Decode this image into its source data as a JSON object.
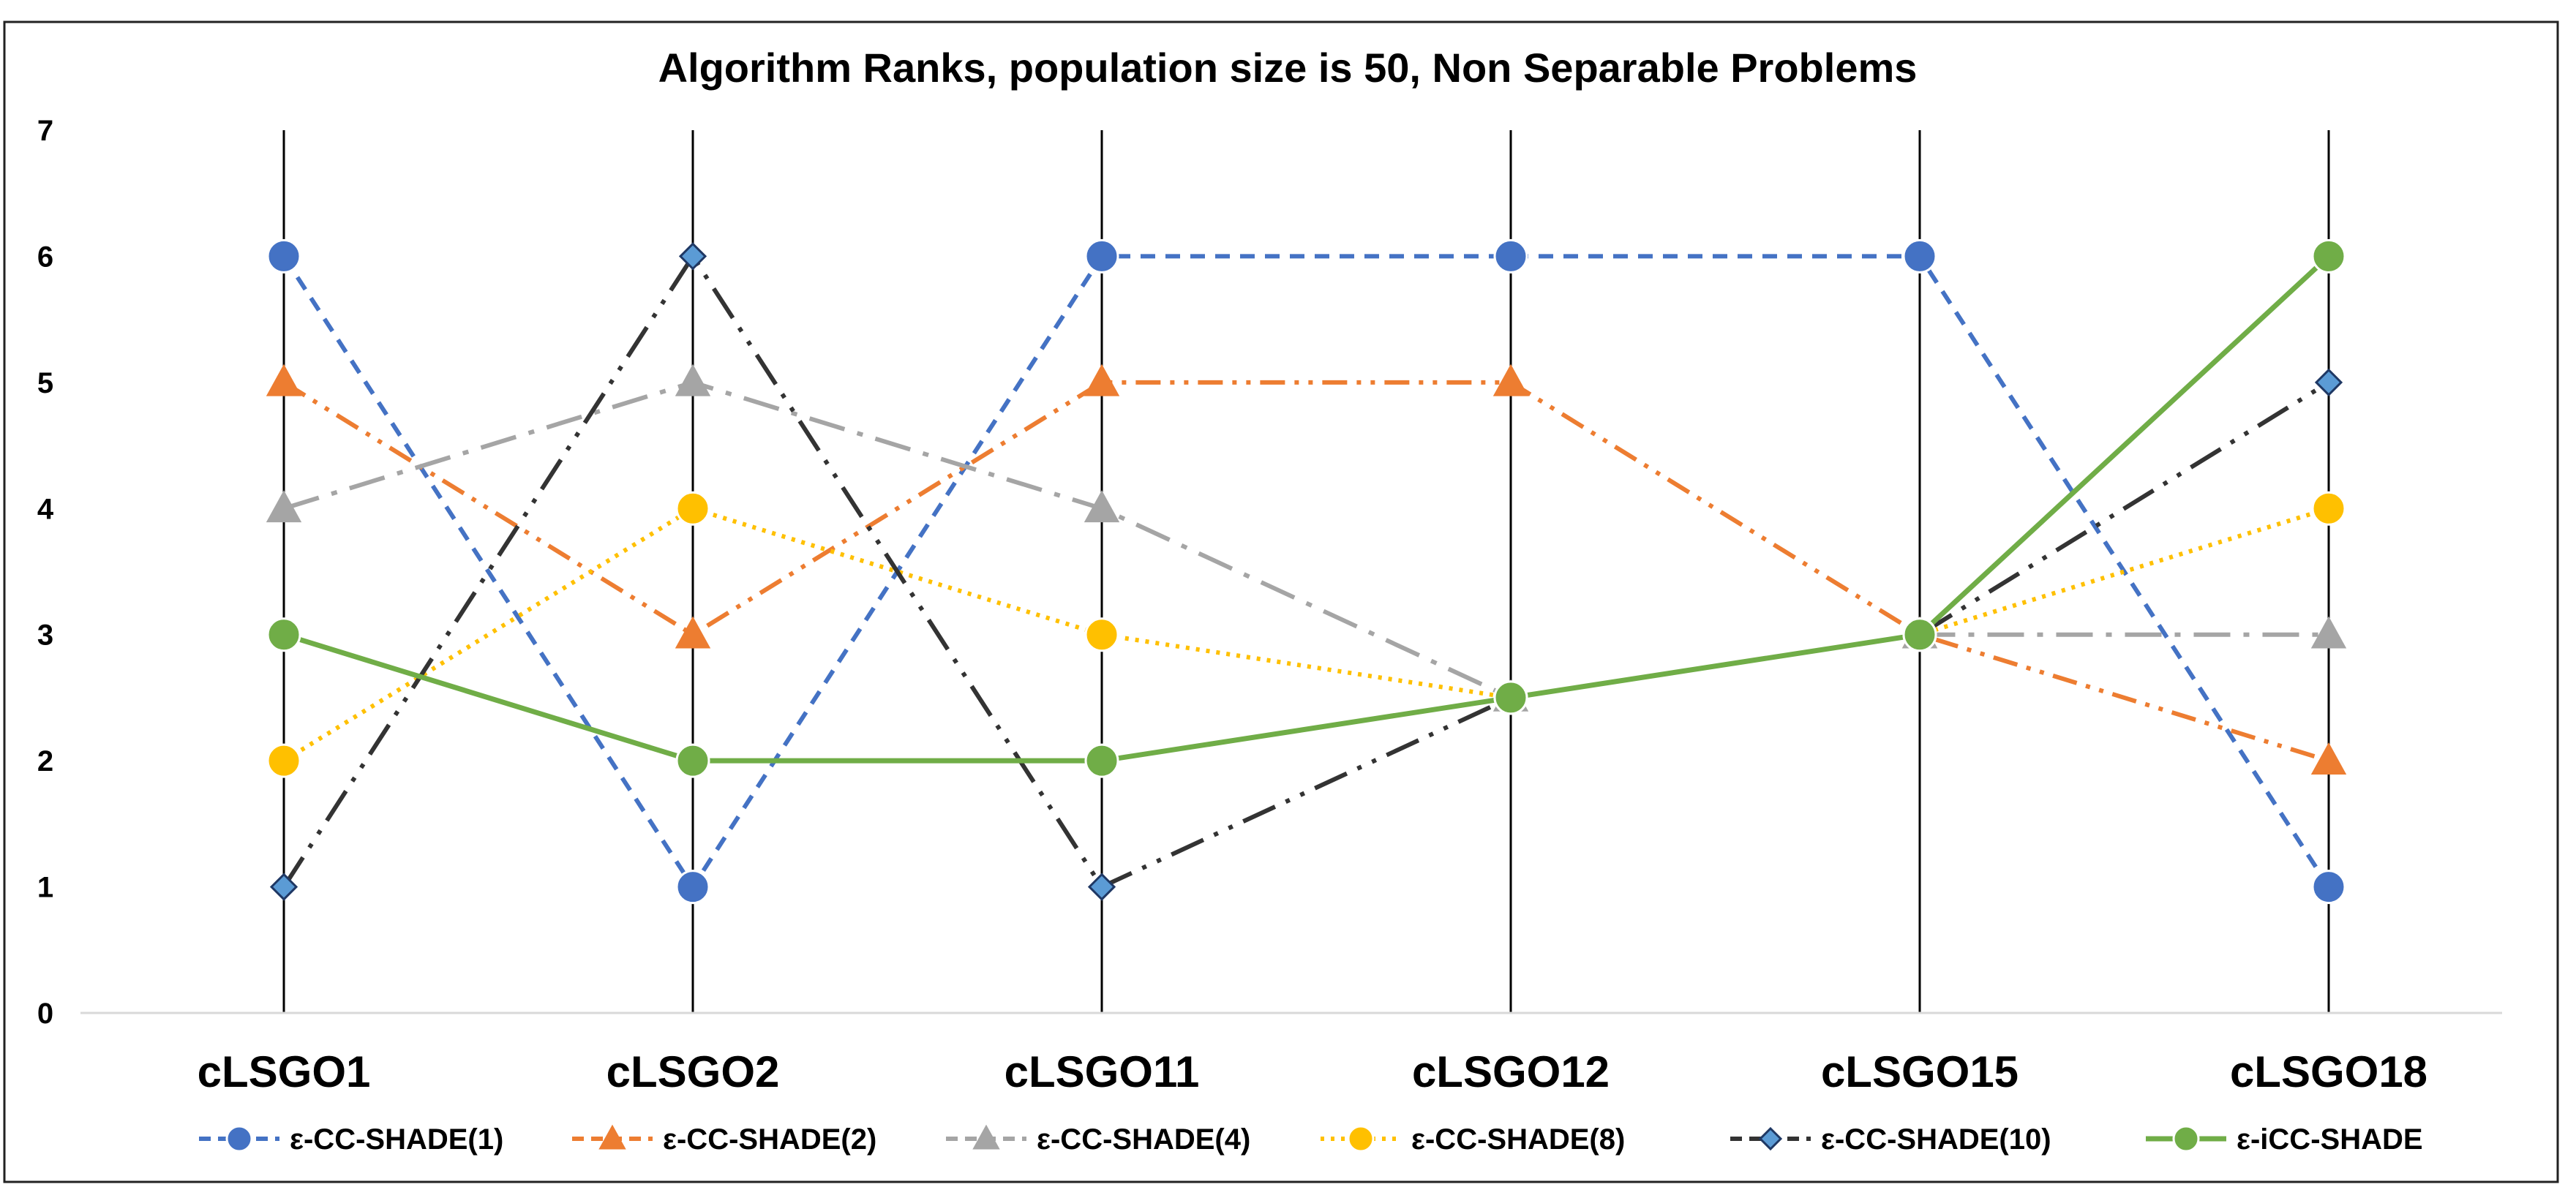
{
  "chart_data": {
    "type": "line",
    "title": "Algorithm Ranks, population size is 50, Non Separable Problems",
    "xlabel": "",
    "ylabel": "",
    "ylim": [
      0,
      7
    ],
    "yticks": [
      "0",
      "1",
      "2",
      "3",
      "4",
      "5",
      "6",
      "7"
    ],
    "categories": [
      "cLSGO1",
      "cLSGO2",
      "cLSGO11",
      "cLSGO12",
      "cLSGO15",
      "cLSGO18"
    ],
    "grid": "vertical lines at each category",
    "legend_position": "bottom",
    "series": [
      {
        "name": "ε-CC-SHADE(1)",
        "values": [
          6,
          1,
          6,
          6,
          6,
          1
        ],
        "color": "#4472C4",
        "marker": "circle",
        "dash": "dash"
      },
      {
        "name": "ε-CC-SHADE(2)",
        "values": [
          5,
          3,
          5,
          5,
          3,
          2
        ],
        "color": "#ED7D31",
        "marker": "triangle",
        "dash": "dashdotdot"
      },
      {
        "name": "ε-CC-SHADE(4)",
        "values": [
          4,
          5,
          4,
          2.5,
          3,
          3
        ],
        "color": "#A5A5A5",
        "marker": "triangle",
        "dash": "longdashdot"
      },
      {
        "name": "ε-CC-SHADE(8)",
        "values": [
          2,
          4,
          3,
          2.5,
          3,
          4
        ],
        "color": "#FFC000",
        "marker": "circle",
        "dash": "dot"
      },
      {
        "name": "ε-CC-SHADE(10)",
        "values": [
          1,
          6,
          1,
          2.5,
          3,
          5
        ],
        "color": "#333333",
        "marker": "diamond",
        "dash": "longdashdotdot",
        "marker_fill": "#5B9BD5"
      },
      {
        "name": "ε-iCC-SHADE",
        "values": [
          3,
          2,
          2,
          2.5,
          3,
          6
        ],
        "color": "#70AD47",
        "marker": "circle",
        "dash": "solid"
      }
    ]
  }
}
